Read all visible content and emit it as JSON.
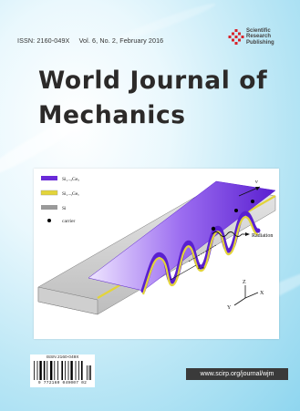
{
  "header": {
    "issn": "ISSN: 2160-049X",
    "volume_issue": "Vol. 6, No. 2, February 2016"
  },
  "publisher": {
    "line1": "Scientific",
    "line2": "Research",
    "line3": "Publishing",
    "logo_color": "#d8232a"
  },
  "title": {
    "line1": "World Journal of",
    "line2": "Mechanics"
  },
  "figure": {
    "legend": [
      {
        "label": "Si₁₋ₓGeₓ",
        "color": "#6a2ad8"
      },
      {
        "label": "Si₁₋ᵧGeᵧ",
        "color": "#e3d43a"
      },
      {
        "label": "Si",
        "color": "#9a9a9a"
      },
      {
        "label": "carrier",
        "color": "#000000"
      }
    ],
    "radiation_label": "Radiation",
    "lambda_label": "Lₘ",
    "v_label": "v",
    "axis_x": "X",
    "axis_y": "Y",
    "axis_z": "Z"
  },
  "barcode": {
    "issn": "ISSN 2160-049X",
    "digits": "9 772160 049007  02"
  },
  "url": "www.scirp.org/journal/wjm"
}
